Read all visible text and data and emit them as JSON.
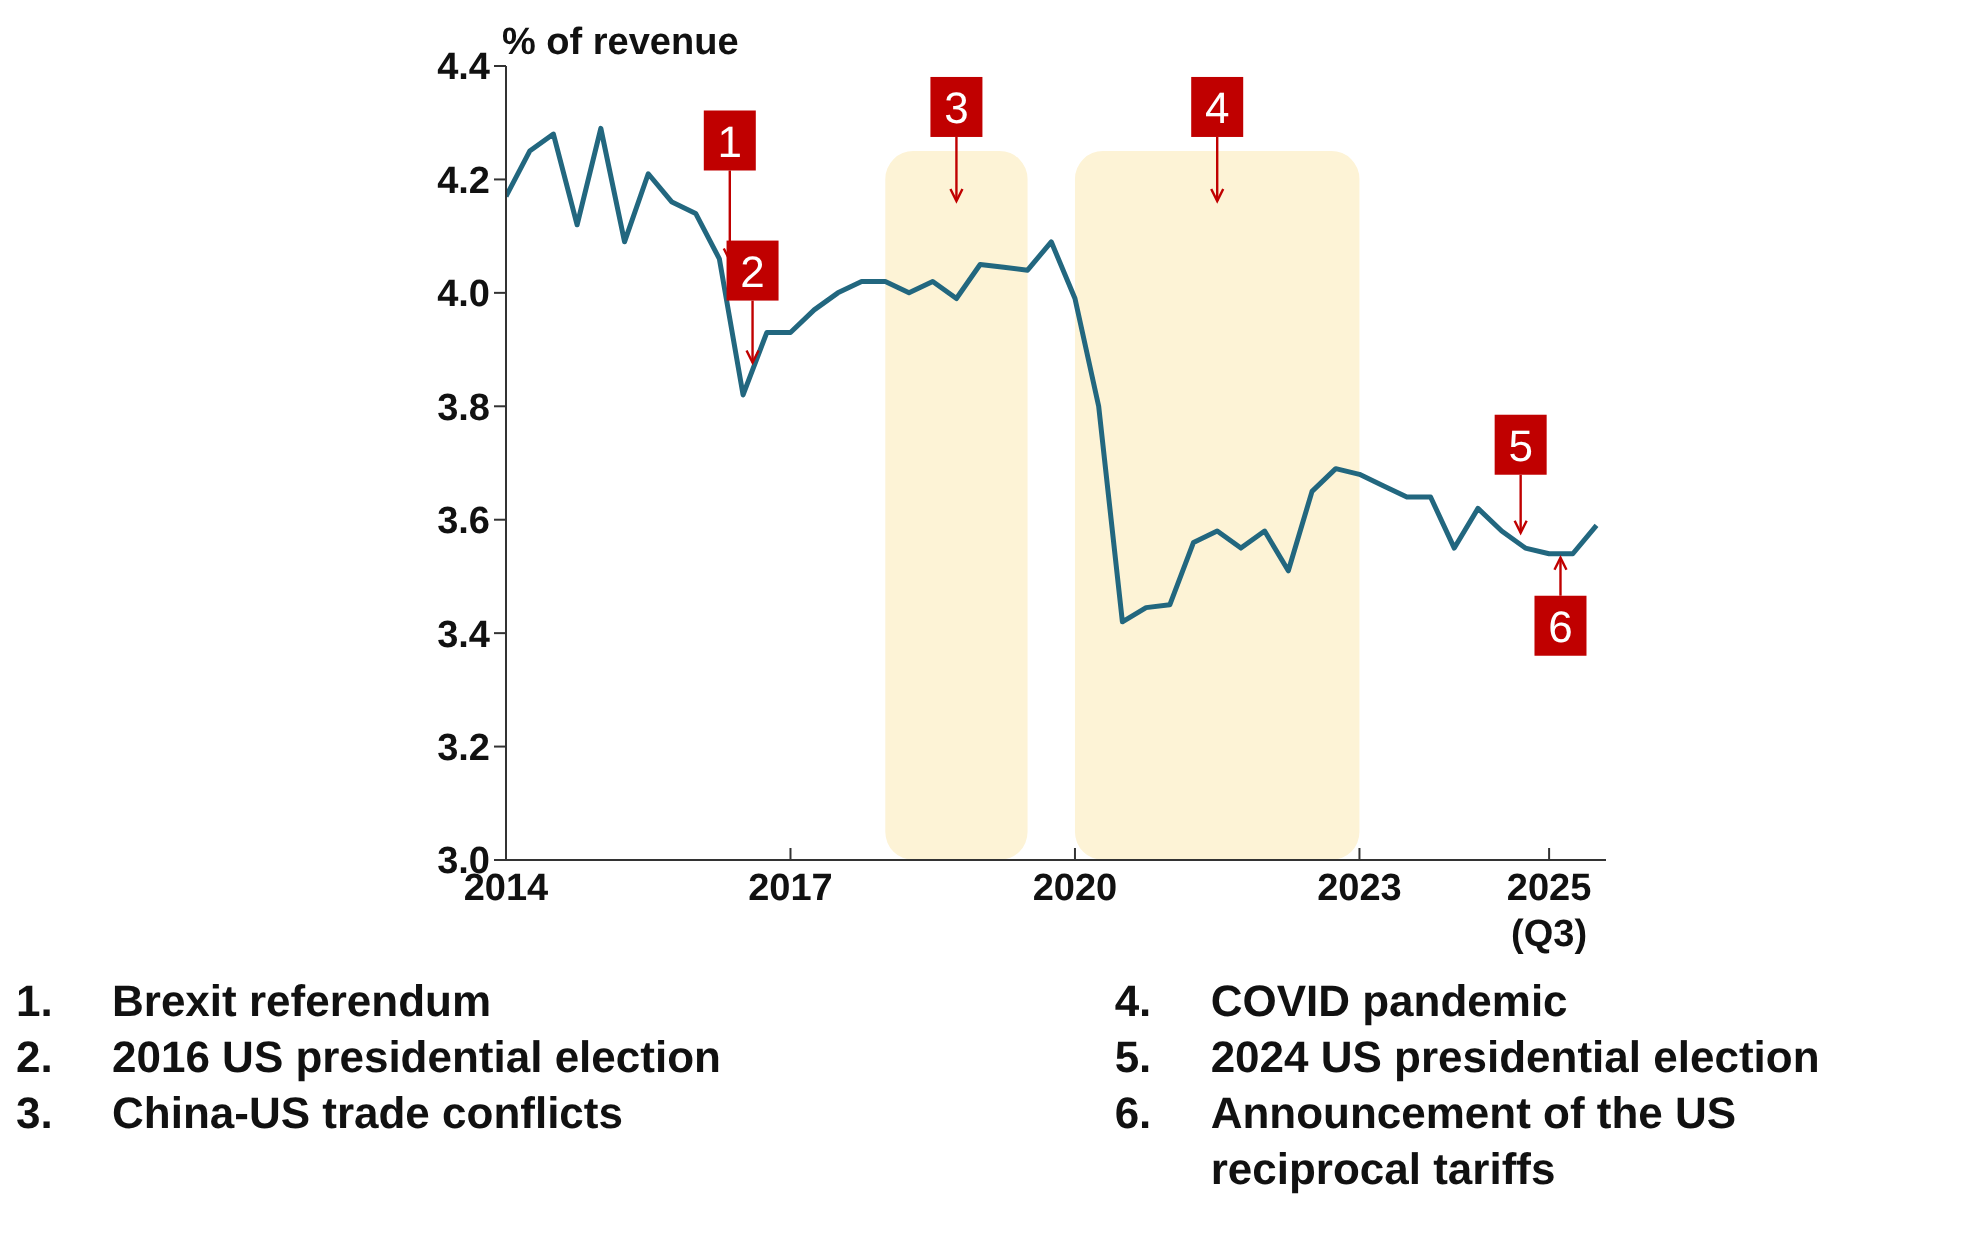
{
  "chart_data": {
    "type": "line",
    "ylabel": "% of revenue",
    "x": [
      2014,
      2014.25,
      2014.5,
      2014.75,
      2015,
      2015.25,
      2015.5,
      2015.75,
      2016,
      2016.25,
      2016.5,
      2016.75,
      2017,
      2017.25,
      2017.5,
      2017.75,
      2018,
      2018.25,
      2018.5,
      2018.75,
      2019,
      2019.25,
      2019.5,
      2019.75,
      2020,
      2020.25,
      2020.5,
      2020.75,
      2021,
      2021.25,
      2021.5,
      2021.75,
      2022,
      2022.25,
      2022.5,
      2022.75,
      2023,
      2023.25,
      2023.5,
      2023.75,
      2024,
      2024.25,
      2024.5,
      2024.75,
      2025,
      2025.25,
      2025.5
    ],
    "series": [
      {
        "color": "#22677f",
        "values": [
          4.17,
          4.25,
          4.28,
          4.12,
          4.29,
          4.09,
          4.21,
          4.16,
          4.14,
          4.06,
          3.82,
          3.93,
          3.93,
          3.97,
          4.0,
          4.02,
          4.02,
          4.0,
          4.02,
          3.99,
          4.05,
          4.045,
          4.04,
          4.09,
          3.99,
          3.8,
          3.42,
          3.445,
          3.45,
          3.56,
          3.58,
          3.55,
          3.58,
          3.51,
          3.65,
          3.69,
          3.68,
          3.66,
          3.64,
          3.64,
          3.55,
          3.62,
          3.58,
          3.55,
          3.54,
          3.54,
          3.59
        ]
      }
    ],
    "xlim": [
      2014,
      2025.6
    ],
    "xticks": [
      2014,
      2017,
      2020,
      2023,
      {
        "value": 2025,
        "label": "2025\n(Q3)"
      }
    ],
    "ylim": [
      3.0,
      4.4
    ],
    "yticks": [
      {
        "value": 3,
        "label": "3.0"
      },
      3.2,
      3.4,
      3.6,
      3.8,
      {
        "value": 4,
        "label": "4.0"
      },
      4.2,
      4.4
    ],
    "grid": false,
    "legend": false,
    "marker": "none",
    "line_style": "solid",
    "bands": [
      {
        "axis": "x",
        "from": 2018,
        "to": 2019.5,
        "label": "3",
        "color": "#fdf3d6"
      },
      {
        "axis": "x",
        "from": 2020,
        "to": 2023,
        "label": "4",
        "color": "#fdf3d6"
      }
    ],
    "annotations": [
      {
        "text": "1",
        "x": 2016.36,
        "y": 4.05
      },
      {
        "text": "2",
        "x": 2016.6,
        "y": 3.87
      },
      {
        "text": "5",
        "x": 2024.7,
        "y": 3.57
      },
      {
        "text": "6",
        "x": 2025.12,
        "y": 3.54
      },
      "1. Brexit referendum",
      "2. 2016 US presidential election",
      "3. China-US trade conflicts",
      "4. COVID pandemic",
      "5. 2024 US presidential election",
      "6. Announcement of the US reciprocal tariffs"
    ]
  }
}
